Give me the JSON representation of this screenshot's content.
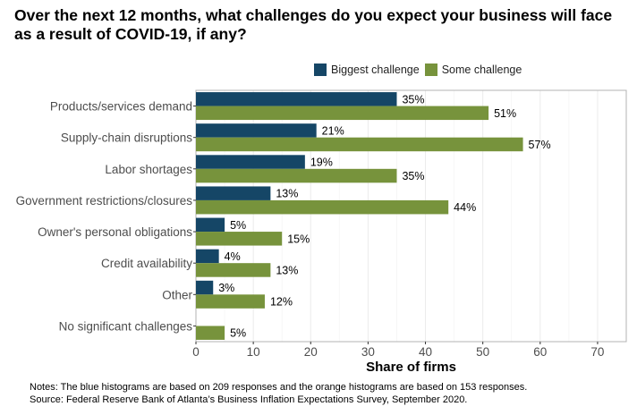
{
  "chart_data": {
    "type": "bar",
    "orientation": "horizontal",
    "title": "Over the next 12 months, what challenges do you expect your business will face as a result of COVID-19, if any?",
    "xlabel": "Share of firms",
    "ylabel": "",
    "xlim": [
      0,
      75
    ],
    "x_ticks": [
      0,
      10,
      20,
      30,
      40,
      50,
      60,
      70
    ],
    "grid": true,
    "legend_position": "top",
    "categories": [
      "Products/services demand",
      "Supply-chain disruptions",
      "Labor shortages",
      "Government restrictions/closures",
      "Owner's personal obligations",
      "Credit availability",
      "Other",
      "No significant challenges"
    ],
    "series": [
      {
        "name": "Biggest challenge",
        "color": "#154666",
        "values": [
          35,
          21,
          19,
          13,
          5,
          4,
          3,
          null
        ],
        "labels": [
          "35%",
          "21%",
          "19%",
          "13%",
          "5%",
          "4%",
          "3%",
          ""
        ]
      },
      {
        "name": "Some challenge",
        "color": "#77933c",
        "values": [
          51,
          57,
          35,
          44,
          15,
          13,
          12,
          5
        ],
        "labels": [
          "51%",
          "57%",
          "35%",
          "44%",
          "15%",
          "13%",
          "12%",
          "5%"
        ]
      }
    ]
  },
  "notes": {
    "line1": "Notes: The blue histograms are based on 209 responses and the orange histograms are based on 153 responses.",
    "line2": "Source: Federal Reserve Bank of Atlanta’s Business Inflation Expectations Survey, September 2020."
  }
}
